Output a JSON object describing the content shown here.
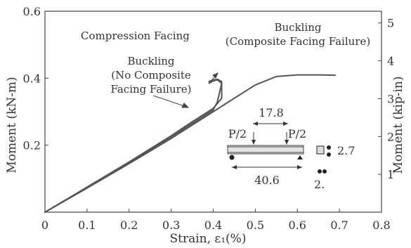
{
  "chart_data": {
    "type": "line",
    "xlabel": "Strain, ε₁(%)",
    "ylabel": "Moment (kN-m)",
    "y2label": "Moment (kip-in)",
    "xlim": [
      0,
      0.8
    ],
    "ylim": [
      0,
      0.6
    ],
    "y2lim": [
      0,
      5.31
    ],
    "xticks": [
      "0",
      "0.1",
      "0.2",
      "0.3",
      "0.4",
      "0.5",
      "0.6",
      "0.7",
      "0.8"
    ],
    "yticks": [
      "0.2",
      "0.4",
      "0.6"
    ],
    "y2ticks": [
      "1",
      "2",
      "3",
      "4",
      "5"
    ],
    "grid": false,
    "series": [
      {
        "x": [
          0,
          0.1,
          0.2,
          0.3,
          0.4,
          0.45,
          0.5,
          0.55,
          0.6,
          0.65,
          0.69
        ],
        "y": [
          0,
          0.072,
          0.145,
          0.22,
          0.3,
          0.34,
          0.38,
          0.405,
          0.41,
          0.41,
          0.409
        ]
      },
      {
        "x": [
          0,
          0.1,
          0.2,
          0.3,
          0.35,
          0.4,
          0.41,
          0.42,
          0.41,
          0.4,
          0.39
        ],
        "y": [
          0,
          0.073,
          0.148,
          0.225,
          0.265,
          0.305,
          0.33,
          0.385,
          0.395,
          0.392,
          0.385
        ]
      },
      {
        "x": [
          0,
          0.1,
          0.2,
          0.3,
          0.35,
          0.4,
          0.42,
          0.42,
          0.41,
          0.4,
          0.39
        ],
        "y": [
          0,
          0.075,
          0.15,
          0.228,
          0.27,
          0.31,
          0.34,
          0.39,
          0.397,
          0.395,
          0.39
        ]
      }
    ],
    "annotations": {
      "compression": "Compression Facing",
      "buckling_composite": [
        "Buckling",
        "(Composite Facing Failure)"
      ],
      "buckling_no_composite": [
        "Buckling",
        "(No Composite",
        "Facing Failure)"
      ]
    },
    "schematic": {
      "span": "17.8",
      "load_left": "P/2",
      "load_right": "P/2",
      "length": "40.6",
      "dim1": "2.7",
      "dim2": "2."
    },
    "colors": {
      "curve": "#555555",
      "text": "#333333",
      "axis": "#444444"
    }
  }
}
